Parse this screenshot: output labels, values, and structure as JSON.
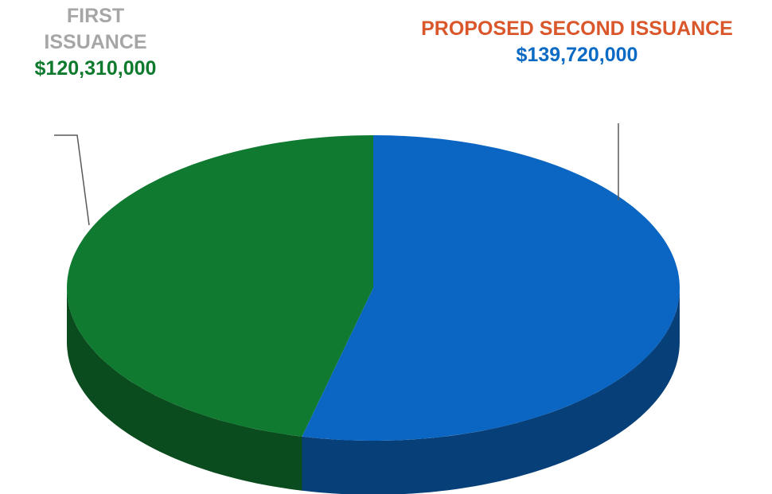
{
  "chart_data": {
    "type": "pie",
    "categories": [
      "FIRST ISSUANCE",
      "PROPOSED SECOND ISSUANCE"
    ],
    "values": [
      120310000,
      139720000
    ],
    "value_labels": [
      "$120,310,000",
      "$139,720,000"
    ],
    "colors": [
      "#107a30",
      "#0b65c2"
    ]
  }
}
